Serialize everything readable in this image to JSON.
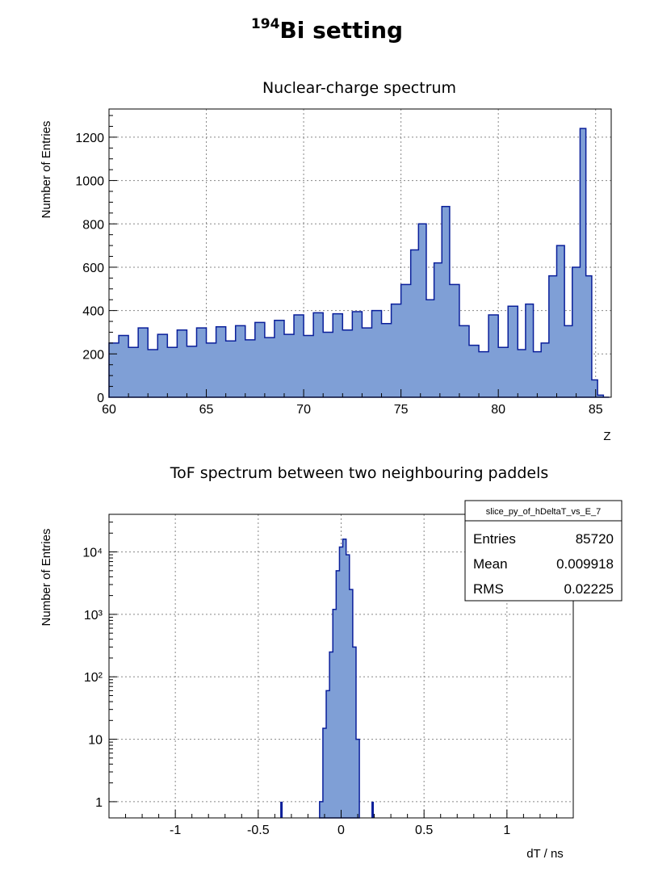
{
  "page": {
    "title_sup": "194",
    "title_main": "Bi setting"
  },
  "chart_data": [
    {
      "type": "bar",
      "title": "Nuclear-charge spectrum",
      "xlabel": "Z",
      "ylabel": "Number of Entries",
      "xlim": [
        60,
        85.8
      ],
      "ylim": [
        0,
        1330
      ],
      "xticks": [
        "60",
        "65",
        "70",
        "75",
        "80",
        "85"
      ],
      "yticks": [
        "0",
        "200",
        "400",
        "600",
        "800",
        "1000",
        "1200"
      ],
      "grid": true,
      "fill_color": "#7f9fd6",
      "line_color": "#0a1f9a",
      "x": [
        60.0,
        60.5,
        61.0,
        61.5,
        62.0,
        62.5,
        63.0,
        63.5,
        64.0,
        64.5,
        65.0,
        65.5,
        66.0,
        66.5,
        67.0,
        67.5,
        68.0,
        68.5,
        69.0,
        69.5,
        70.0,
        70.5,
        71.0,
        71.5,
        72.0,
        72.5,
        73.0,
        73.5,
        74.0,
        74.5,
        75.0,
        75.5,
        75.9,
        76.3,
        76.7,
        77.1,
        77.5,
        78.0,
        78.5,
        79.0,
        79.5,
        80.0,
        80.5,
        81.0,
        81.4,
        81.8,
        82.2,
        82.6,
        83.0,
        83.4,
        83.8,
        84.2,
        84.5,
        84.8,
        85.1,
        85.4
      ],
      "values": [
        250,
        285,
        230,
        320,
        220,
        290,
        230,
        310,
        235,
        320,
        250,
        325,
        260,
        330,
        265,
        345,
        275,
        355,
        290,
        380,
        285,
        390,
        300,
        385,
        310,
        395,
        320,
        400,
        340,
        430,
        520,
        680,
        800,
        450,
        620,
        880,
        520,
        330,
        240,
        210,
        380,
        230,
        420,
        220,
        430,
        210,
        250,
        560,
        700,
        330,
        600,
        1240,
        560,
        80,
        10,
        0
      ]
    },
    {
      "type": "bar",
      "title": "ToF spectrum between two neighbouring paddels",
      "xlabel": "dT / ns",
      "ylabel": "Number of Entries",
      "xlim": [
        -1.4,
        1.4
      ],
      "ylim": [
        0.55,
        40000
      ],
      "yscale": "log",
      "xticks": [
        "-1",
        "-0.5",
        "0",
        "0.5",
        "1"
      ],
      "yticks": [
        "1",
        "10",
        "10²",
        "10³",
        "10⁴"
      ],
      "grid": true,
      "fill_color": "#7f9fd6",
      "line_color": "#0a1f9a",
      "x": [
        -0.36,
        -0.13,
        -0.11,
        -0.09,
        -0.07,
        -0.05,
        -0.03,
        -0.01,
        0.01,
        0.03,
        0.05,
        0.07,
        0.09,
        0.19
      ],
      "values": [
        1,
        1,
        15,
        60,
        250,
        1200,
        5000,
        12000,
        16000,
        9000,
        2500,
        300,
        10,
        1
      ],
      "stats": {
        "name": "slice_py_of_hDeltaT_vs_E_7",
        "rows": [
          {
            "label": "Entries",
            "value": "85720"
          },
          {
            "label": "Mean",
            "value": "0.009918"
          },
          {
            "label": "RMS",
            "value": "0.02225"
          }
        ]
      }
    }
  ]
}
